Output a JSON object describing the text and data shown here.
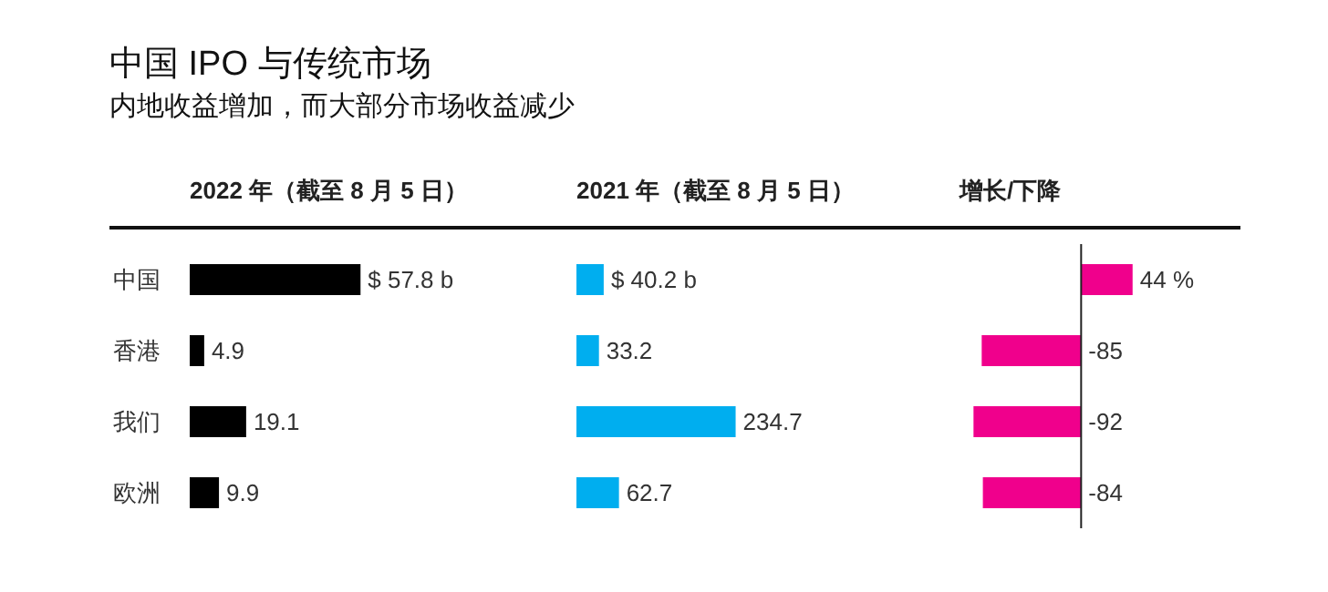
{
  "chart_data": [
    {
      "type": "bar",
      "orientation": "horizontal",
      "title": "中国 IPO 与传统市场",
      "subtitle": "内地收益增加，而大部分市场收益减少",
      "xlabel": "2022 年（截至 8 月 5 日）",
      "categories": [
        "中国",
        "香港",
        "我们",
        "欧洲"
      ],
      "tick_labels": "y",
      "series": [
        {
          "color": "#000000",
          "values": [
            57.8,
            4.9,
            19.1,
            9.9
          ],
          "value_labels": [
            "$ 57.8 b",
            "4.9",
            "19.1",
            "9.9"
          ]
        }
      ]
    },
    {
      "type": "bar",
      "orientation": "horizontal",
      "xlabel": "2021 年（截至 8 月 5 日）",
      "categories": [
        null,
        null,
        null,
        null
      ],
      "tick_labels": false,
      "series": [
        {
          "color": "#00aeef",
          "values": [
            40.2,
            33.2,
            234.7,
            62.7
          ],
          "value_labels": [
            "$ 40.2 b",
            "33.2",
            "234.7",
            "62.7"
          ]
        }
      ]
    },
    {
      "type": "bar",
      "orientation": "horizontal",
      "xlabel": "增长/下降",
      "categories": [
        null,
        null,
        null,
        null
      ],
      "tick_labels": false,
      "series": [
        {
          "color": "#f0008c",
          "values": [
            44,
            -85,
            -92,
            -84
          ],
          "value_labels": [
            "44 %",
            "-85",
            "-92",
            "-84"
          ]
        }
      ]
    }
  ]
}
